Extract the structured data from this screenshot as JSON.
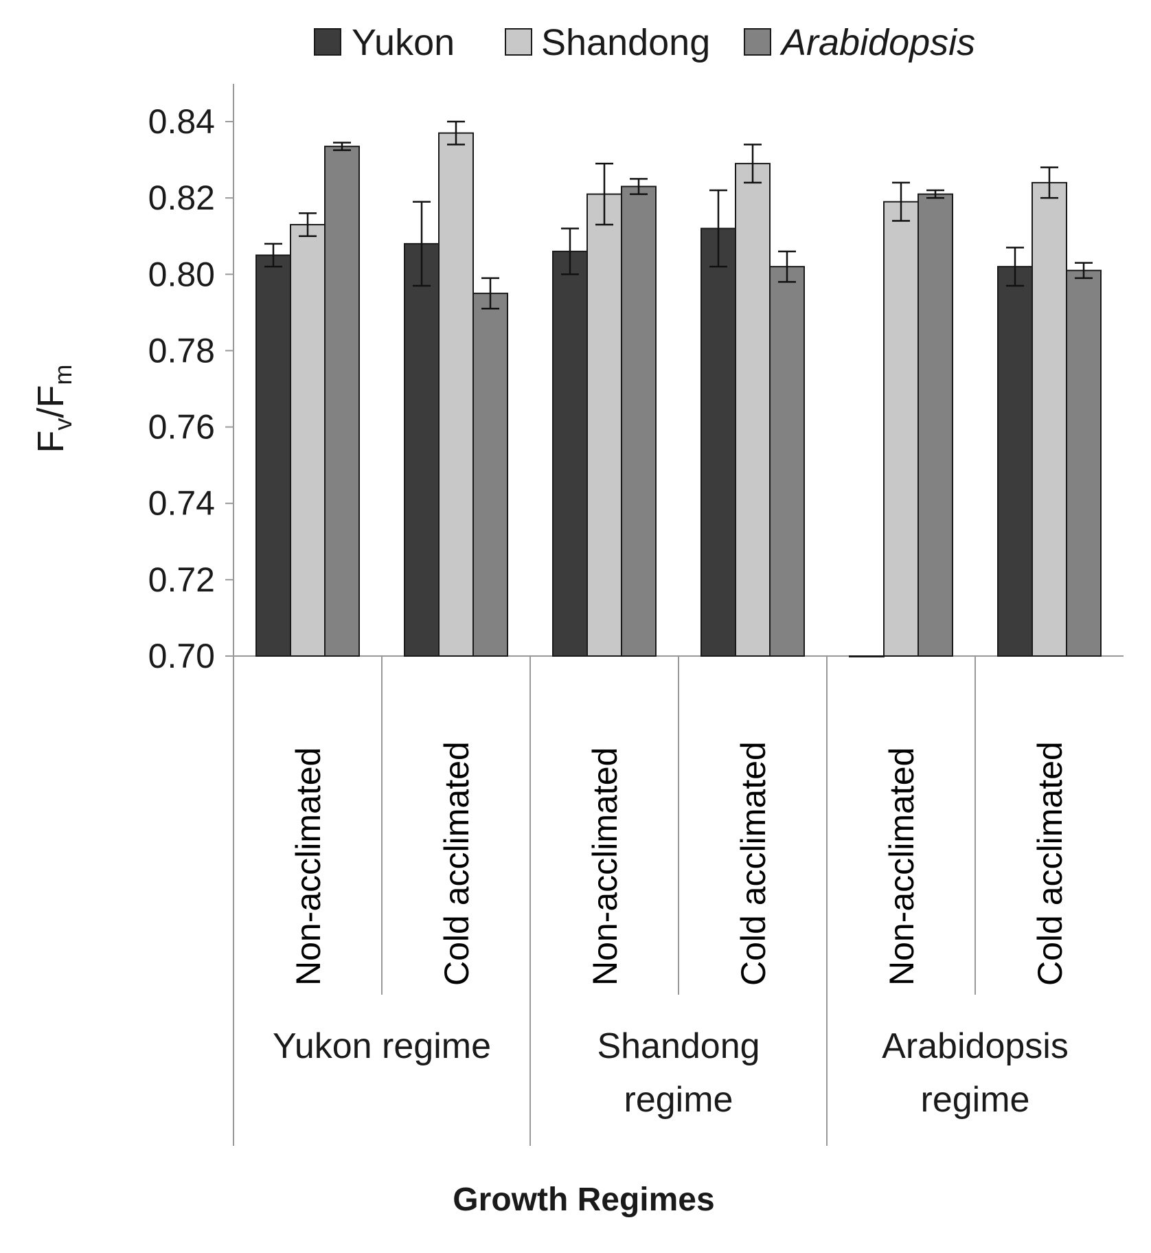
{
  "chart_data": {
    "type": "bar",
    "title": "",
    "xlabel": "Growth Regimes",
    "ylabel": {
      "main": "F",
      "sub1": "v",
      "slash": "/F",
      "sub2": "m"
    },
    "ylim": [
      0.7,
      0.84
    ],
    "yticks": [
      "0.70",
      "0.72",
      "0.74",
      "0.76",
      "0.78",
      "0.80",
      "0.82",
      "0.84"
    ],
    "legend_position": "top-center",
    "groups": [
      {
        "label_lines": [
          "Yukon regime"
        ],
        "categories": [
          "Non-acclimated",
          "Cold acclimated"
        ]
      },
      {
        "label_lines": [
          "Shandong",
          "regime"
        ],
        "categories": [
          "Non-acclimated",
          "Cold acclimated"
        ]
      },
      {
        "label_lines": [
          "Arabidopsis",
          "regime"
        ],
        "categories": [
          "Non-acclimated",
          "Cold acclimated"
        ]
      }
    ],
    "series": [
      {
        "name": "Yukon",
        "italic": false,
        "color": "#3c3c3c",
        "values": [
          0.805,
          0.808,
          0.806,
          0.812,
          0.7,
          0.802
        ],
        "errors": [
          0.003,
          0.011,
          0.006,
          0.01,
          0.0,
          0.005
        ]
      },
      {
        "name": "Shandong",
        "italic": false,
        "color": "#c8c8c8",
        "values": [
          0.813,
          0.837,
          0.821,
          0.829,
          0.819,
          0.824
        ],
        "errors": [
          0.003,
          0.003,
          0.008,
          0.005,
          0.005,
          0.004
        ]
      },
      {
        "name": "Arabidopsis",
        "italic": true,
        "color": "#828282",
        "values": [
          0.8335,
          0.795,
          0.823,
          0.802,
          0.821,
          0.801
        ],
        "errors": [
          0.001,
          0.004,
          0.002,
          0.004,
          0.001,
          0.002
        ]
      }
    ]
  }
}
